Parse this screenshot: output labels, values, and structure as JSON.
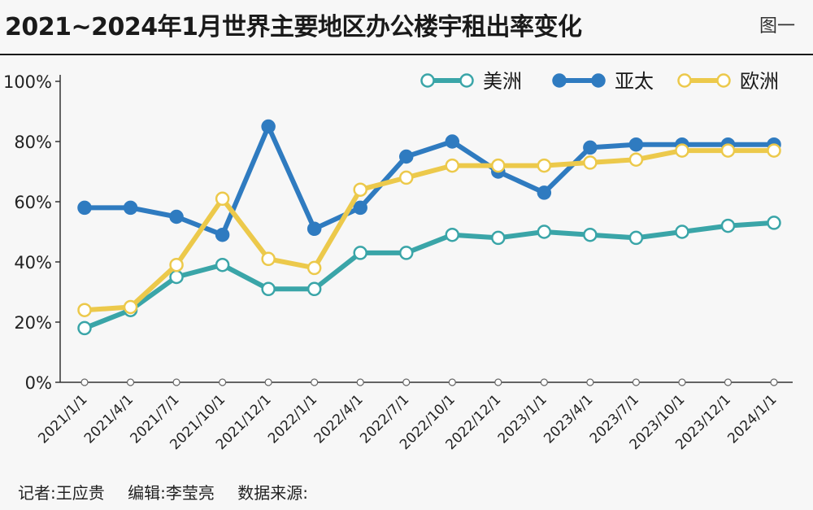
{
  "header": {
    "title": "2021~2024年1月世界主要地区办公楼宇租出率变化",
    "figure_label": "图一"
  },
  "footer": {
    "reporter": "记者:王应贵",
    "editor": "编辑:李莹亮",
    "source": "数据来源:"
  },
  "colors": {
    "americas": "#3aa5a8",
    "asia_pacific": "#2f7bc0",
    "europe": "#ecc94b"
  },
  "chart_data": {
    "type": "line",
    "title": "2021~2024年1月世界主要地区办公楼宇租出率变化",
    "xlabel": "",
    "ylabel": "",
    "categories": [
      "2021/1/1",
      "2021/4/1",
      "2021/7/1",
      "2021/10/1",
      "2021/12/1",
      "2022/1/1",
      "2022/4/1",
      "2022/7/1",
      "2022/10/1",
      "2022/12/1",
      "2023/1/1",
      "2023/4/1",
      "2023/7/1",
      "2023/10/1",
      "2023/12/1",
      "2024/1/1"
    ],
    "ylim": [
      0,
      100
    ],
    "yticks": [
      0,
      20,
      40,
      60,
      80,
      100
    ],
    "ytick_labels": [
      "0%",
      "20%",
      "40%",
      "60%",
      "80%",
      "100%"
    ],
    "legend_position": "top-right",
    "grid": false,
    "series": [
      {
        "name": "美洲",
        "key": "americas",
        "marker": "hollow",
        "values": [
          18,
          24,
          35,
          39,
          31,
          31,
          43,
          43,
          49,
          48,
          50,
          49,
          48,
          50,
          52,
          53
        ]
      },
      {
        "name": "亚太",
        "key": "asia_pacific",
        "marker": "filled",
        "values": [
          58,
          58,
          55,
          49,
          85,
          51,
          58,
          75,
          80,
          70,
          63,
          78,
          79,
          79,
          79,
          79
        ]
      },
      {
        "name": "欧洲",
        "key": "europe",
        "marker": "hollow",
        "values": [
          24,
          25,
          39,
          61,
          41,
          38,
          64,
          68,
          72,
          72,
          72,
          73,
          74,
          77,
          77,
          77
        ]
      }
    ]
  }
}
